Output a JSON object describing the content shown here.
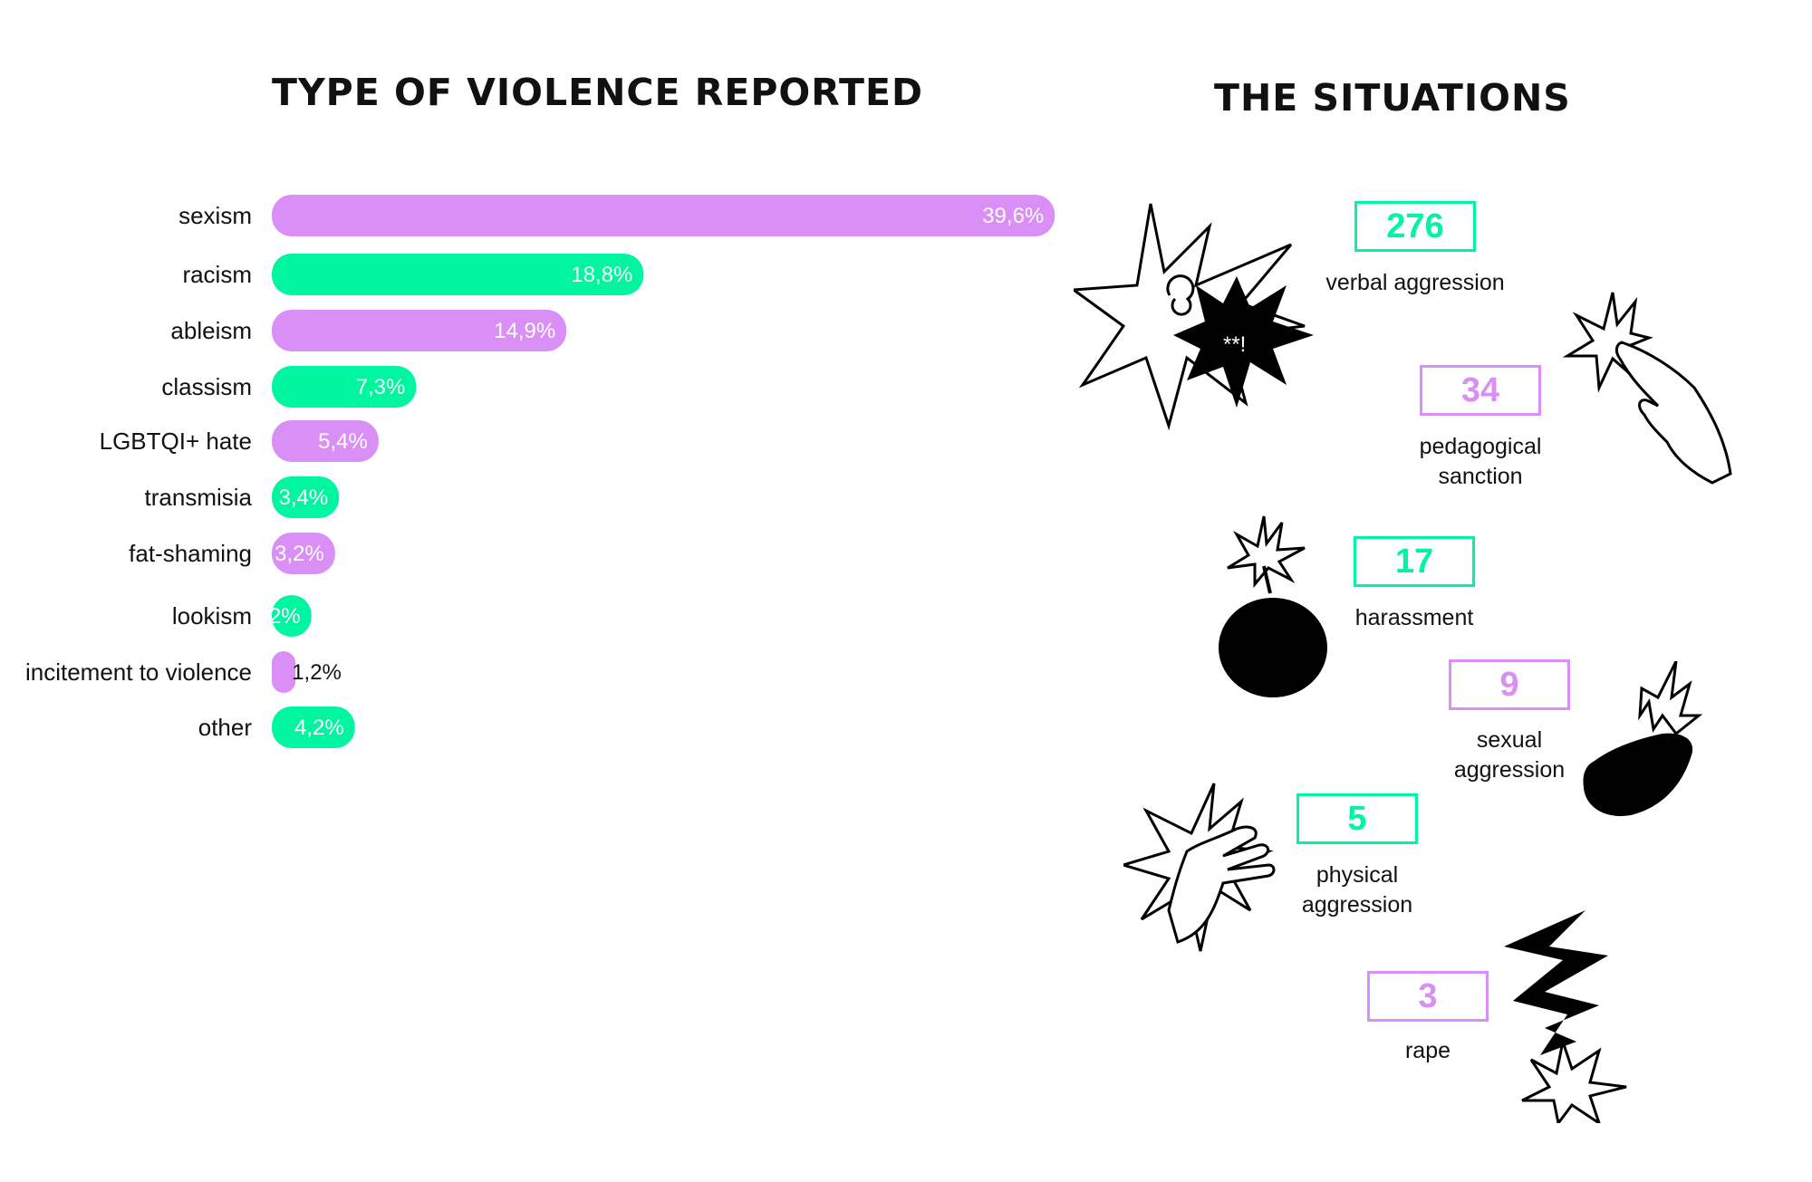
{
  "left_title": "TYPE OF VIOLENCE REPORTED",
  "right_title": "THE SITUATIONS",
  "colors": {
    "purple": "#d98ff5",
    "green": "#00f5a0",
    "text": "#111111"
  },
  "chart_data": {
    "type": "bar",
    "orientation": "horizontal",
    "title": "TYPE OF VIOLENCE REPORTED",
    "categories": [
      "sexism",
      "racism",
      "ableism",
      "classism",
      "LGBTQI+ hate",
      "transmisia",
      "fat-shaming",
      "lookism",
      "incitement to violence",
      "other"
    ],
    "values": [
      39.6,
      18.8,
      14.9,
      7.3,
      5.4,
      3.4,
      3.2,
      2,
      1.2,
      4.2
    ],
    "value_labels": [
      "39,6%",
      "18,8%",
      "14,9%",
      "7,3%",
      "5,4%",
      "3,4%",
      "3,2%",
      "2%",
      "1,2%",
      "4,2%"
    ],
    "bar_colors": [
      "#d98ff5",
      "#00f5a0",
      "#d98ff5",
      "#00f5a0",
      "#d98ff5",
      "#00f5a0",
      "#d98ff5",
      "#00f5a0",
      "#d98ff5",
      "#00f5a0"
    ],
    "xlim": [
      0,
      40
    ],
    "grid": false,
    "legend": "none"
  },
  "situations": [
    {
      "value": "276",
      "label": "verbal aggression",
      "color": "#00f5a0",
      "icon": "explosion-speech-icon"
    },
    {
      "value": "34",
      "label": "pedagogical\nsanction",
      "color": "#d98ff5",
      "icon": "pointing-finger-icon"
    },
    {
      "value": "17",
      "label": "harassment",
      "color": "#00f5a0",
      "icon": "bomb-icon"
    },
    {
      "value": "9",
      "label": "sexual\naggression",
      "color": "#d98ff5",
      "icon": "grabbing-hand-icon"
    },
    {
      "value": "5",
      "label": "physical\naggression",
      "color": "#00f5a0",
      "icon": "slapping-hand-icon"
    },
    {
      "value": "3",
      "label": "rape",
      "color": "#d98ff5",
      "icon": "lightning-bolt-icon"
    }
  ]
}
